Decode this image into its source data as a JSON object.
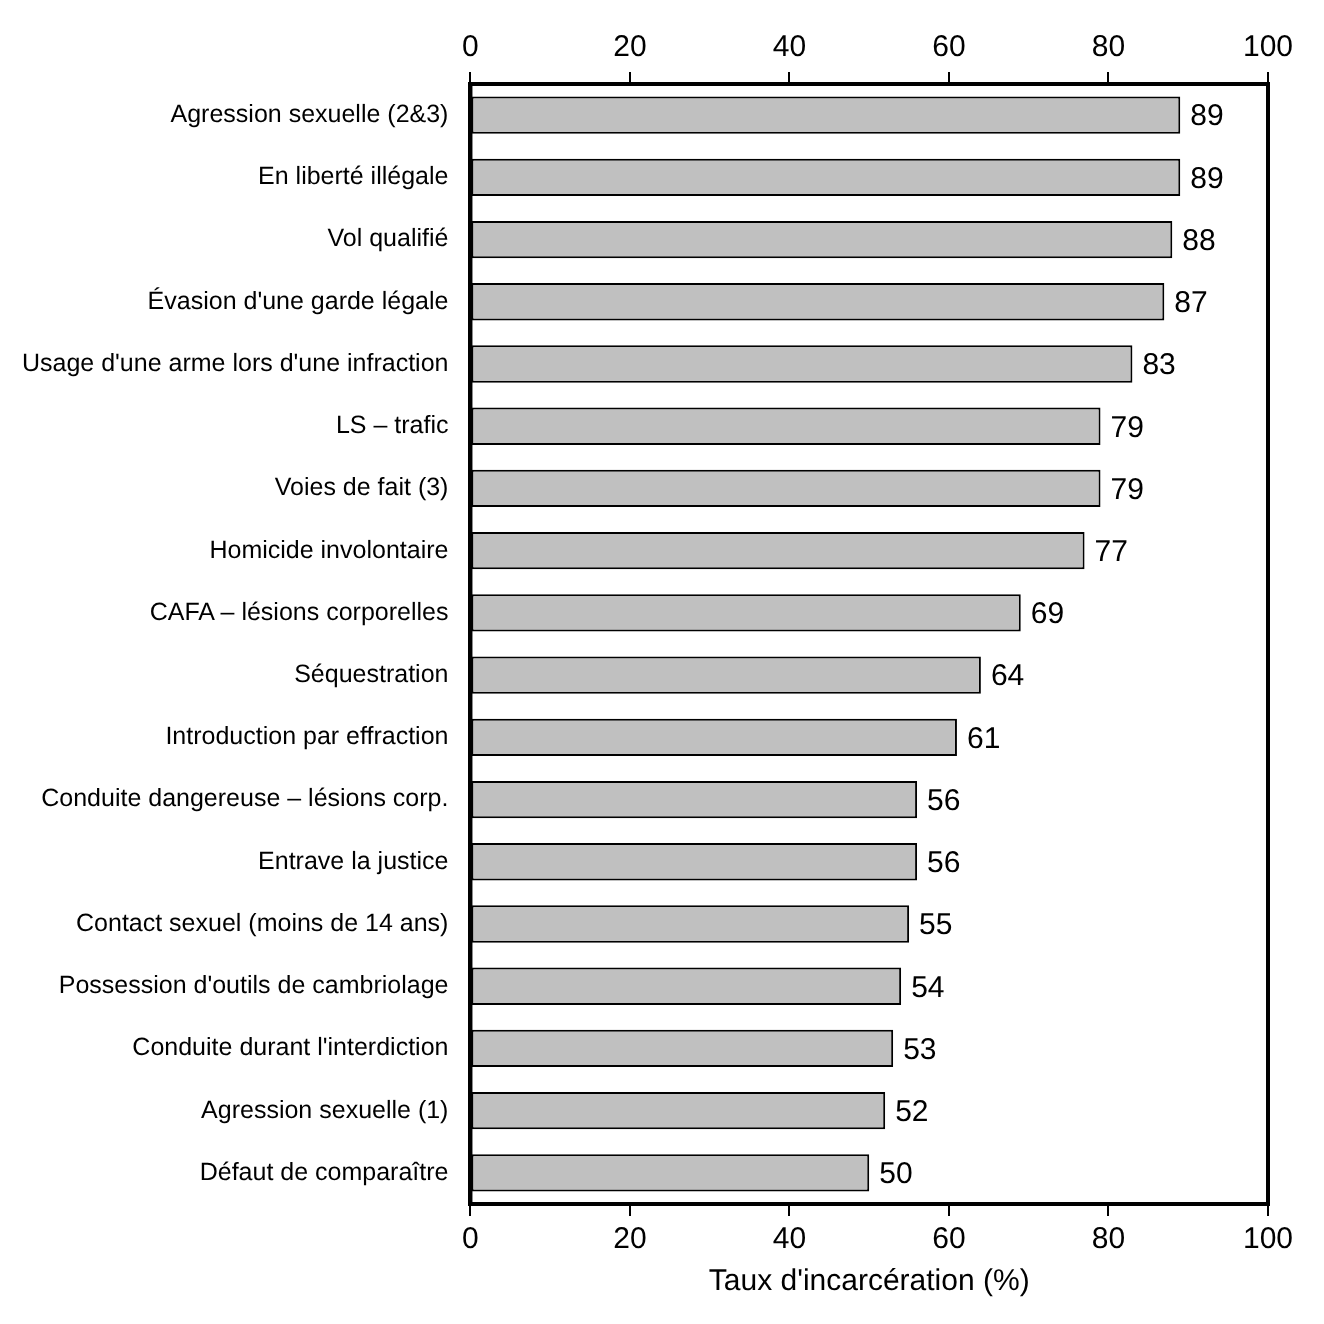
{
  "chart_data": {
    "type": "bar",
    "orientation": "horizontal",
    "xlabel": "Taux d'incarcération (%)",
    "categories": [
      "Agression sexuelle (2&3)",
      "En liberté illégale",
      "Vol qualifié",
      "Évasion d'une garde légale",
      "Usage d'une arme lors d'une infraction",
      "LS – trafic",
      "Voies de fait (3)",
      "Homicide involontaire",
      "CAFA – lésions corporelles",
      "Séquestration",
      "Introduction par effraction",
      "Conduite dangereuse – lésions corp.",
      "Entrave la justice",
      "Contact sexuel (moins de 14 ans)",
      "Possession d'outils de cambriolage",
      "Conduite durant l'interdiction",
      "Agression sexuelle (1)",
      "Défaut de comparaître"
    ],
    "values": [
      89,
      89,
      88,
      87,
      83,
      79,
      79,
      77,
      69,
      64,
      61,
      56,
      56,
      55,
      54,
      53,
      52,
      50
    ],
    "color": "#c0c0c0",
    "xlim": [
      0,
      100
    ],
    "xticks": [
      0,
      20,
      40,
      60,
      80,
      100
    ],
    "x2lim": [
      0,
      100
    ],
    "x2ticks": [
      0,
      20,
      40,
      60,
      80,
      100
    ],
    "data_labels": true,
    "grid": false,
    "legend": false
  }
}
